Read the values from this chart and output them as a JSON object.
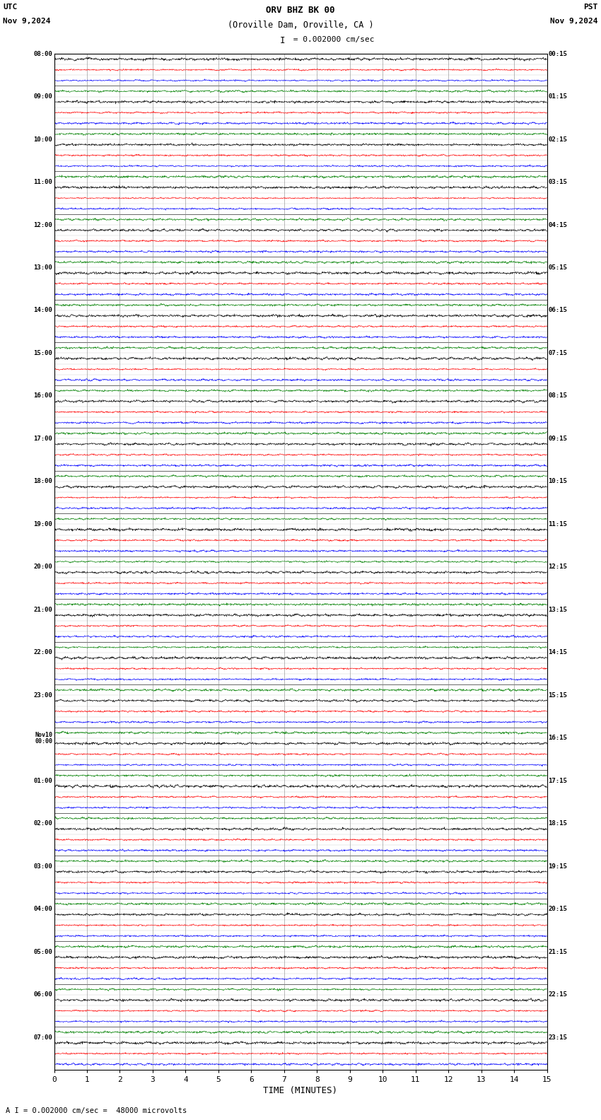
{
  "title_line1": "ORV BHZ BK 00",
  "title_line2": "(Oroville Dam, Oroville, CA )",
  "scale_label": "= 0.002000 cm/sec",
  "left_header": "UTC",
  "left_date": "Nov 9,2024",
  "right_header": "PST",
  "right_date": "Nov 9,2024",
  "xlabel": "TIME (MINUTES)",
  "bottom_note": "A I = 0.002000 cm/sec =  48000 microvolts",
  "xlim": [
    0,
    15
  ],
  "xticks": [
    0,
    1,
    2,
    3,
    4,
    5,
    6,
    7,
    8,
    9,
    10,
    11,
    12,
    13,
    14,
    15
  ],
  "left_times": [
    "08:00",
    "",
    "",
    "",
    "09:00",
    "",
    "",
    "",
    "10:00",
    "",
    "",
    "",
    "11:00",
    "",
    "",
    "",
    "12:00",
    "",
    "",
    "",
    "13:00",
    "",
    "",
    "",
    "14:00",
    "",
    "",
    "",
    "15:00",
    "",
    "",
    "",
    "16:00",
    "",
    "",
    "",
    "17:00",
    "",
    "",
    "",
    "18:00",
    "",
    "",
    "",
    "19:00",
    "",
    "",
    "",
    "20:00",
    "",
    "",
    "",
    "21:00",
    "",
    "",
    "",
    "22:00",
    "",
    "",
    "",
    "23:00",
    "",
    "",
    "",
    "Nov10\n00:00",
    "",
    "",
    "",
    "01:00",
    "",
    "",
    "",
    "02:00",
    "",
    "",
    "",
    "03:00",
    "",
    "",
    "",
    "04:00",
    "",
    "",
    "",
    "05:00",
    "",
    "",
    "",
    "06:00",
    "",
    "",
    "",
    "07:00",
    "",
    ""
  ],
  "right_times": [
    "00:15",
    "",
    "",
    "",
    "01:15",
    "",
    "",
    "",
    "02:15",
    "",
    "",
    "",
    "03:15",
    "",
    "",
    "",
    "04:15",
    "",
    "",
    "",
    "05:15",
    "",
    "",
    "",
    "06:15",
    "",
    "",
    "",
    "07:15",
    "",
    "",
    "",
    "08:15",
    "",
    "",
    "",
    "09:15",
    "",
    "",
    "",
    "10:15",
    "",
    "",
    "",
    "11:15",
    "",
    "",
    "",
    "12:15",
    "",
    "",
    "",
    "13:15",
    "",
    "",
    "",
    "14:15",
    "",
    "",
    "",
    "15:15",
    "",
    "",
    "",
    "16:15",
    "",
    "",
    "",
    "17:15",
    "",
    "",
    "",
    "18:15",
    "",
    "",
    "",
    "19:15",
    "",
    "",
    "",
    "20:15",
    "",
    "",
    "",
    "21:15",
    "",
    "",
    "",
    "22:15",
    "",
    "",
    "",
    "23:15",
    "",
    ""
  ],
  "trace_colors": [
    "black",
    "red",
    "blue",
    "green"
  ],
  "n_rows": 95,
  "background_color": "white",
  "figwidth": 8.5,
  "figheight": 15.84
}
